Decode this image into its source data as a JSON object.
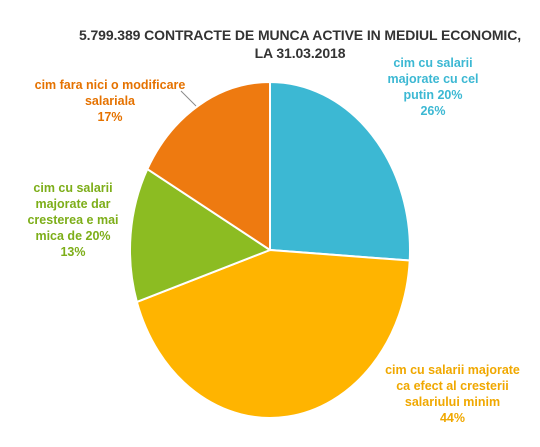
{
  "chart_data": {
    "type": "pie",
    "title_lines": [
      "5.799.389 CONTRACTE DE MUNCA ACTIVE IN MEDIUL ECONOMIC,",
      "LA 31.03.2018"
    ],
    "slices": [
      {
        "label_lines": [
          "cim cu salarii",
          "majorate cu cel",
          "putin 20%"
        ],
        "value": 26,
        "pct_label": "26%",
        "color": "#3CB8D3"
      },
      {
        "label_lines": [
          "cim cu salarii majorate",
          "ca efect al cresterii",
          "salariului minim"
        ],
        "value": 44,
        "pct_label": "44%",
        "color": "#FFB400"
      },
      {
        "label_lines": [
          "cim cu salarii",
          "majorate dar",
          "cresterea e mai",
          "mica de 20%"
        ],
        "value": 13,
        "pct_label": "13%",
        "color": "#8CBC22"
      },
      {
        "label_lines": [
          "cim fara nici o modificare",
          "salariala"
        ],
        "value": 17,
        "pct_label": "17%",
        "color": "#EE7A10"
      }
    ],
    "start_angle_deg": 0,
    "direction": "clockwise",
    "legend": "none"
  }
}
